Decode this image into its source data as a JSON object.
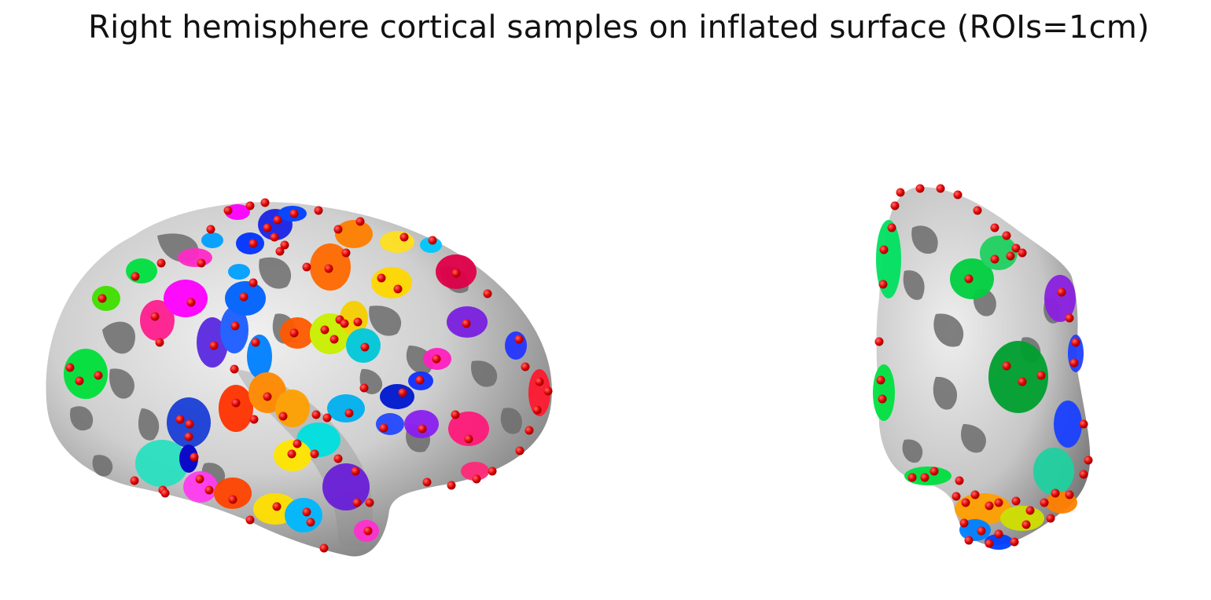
{
  "figure": {
    "title": "Right hemisphere cortical samples on inflated surface (ROIs=1cm)"
  },
  "colors": {
    "background": "#ffffff",
    "surface_light": "#d9d9d9",
    "surface_dark": "#707070",
    "sulci": "#6a6a6a",
    "sample_marker": "#e00000"
  },
  "views": [
    {
      "name": "lateral-view"
    },
    {
      "name": "posterior-view"
    }
  ]
}
